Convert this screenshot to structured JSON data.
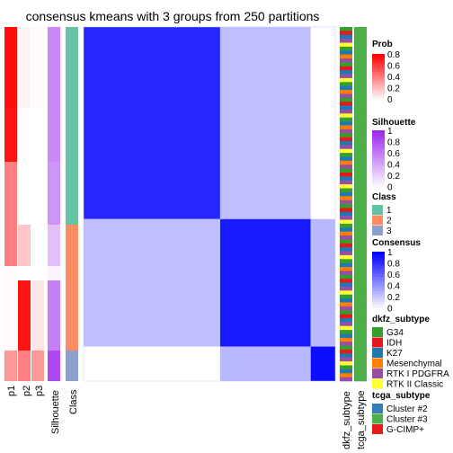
{
  "chart_data": {
    "type": "heatmap",
    "title": "consensus kmeans with 3 groups from 250 partitions",
    "columns": [
      "p1",
      "p2",
      "p3",
      "Silhouette",
      "Class"
    ],
    "row_groups": [
      {
        "p1": 0.95,
        "p2": 0.05,
        "p3": 0.02,
        "silhouette": 0.55,
        "class": 1
      },
      {
        "p1": 0.92,
        "p2": 0.0,
        "p3": 0.0,
        "silhouette": 0.55,
        "class": 1
      },
      {
        "p1": 0.5,
        "p2": 0.0,
        "p3": 0.0,
        "silhouette": 0.5,
        "class": 1
      },
      {
        "p1": 0.5,
        "p2": 0.22,
        "p3": 0.0,
        "silhouette": 0.3,
        "class": 2
      },
      {
        "p1": 0.02,
        "p2": 0.0,
        "p3": 0.0,
        "silhouette": 0.05,
        "class": 2
      },
      {
        "p1": 0.02,
        "p2": 0.92,
        "p3": 0.1,
        "silhouette": 0.6,
        "class": 2
      },
      {
        "p1": 0.4,
        "p2": 0.5,
        "p3": 0.4,
        "silhouette": 0.85,
        "class": 3
      }
    ],
    "consensus_blocks": [
      {
        "cluster": 1,
        "rows": 217,
        "within": 0.85,
        "between": {
          "2": 0.25,
          "3": 0.0
        }
      },
      {
        "cluster": 2,
        "rows": 144,
        "within": 0.9,
        "between": {
          "1": 0.25,
          "3": 0.28
        }
      },
      {
        "cluster": 3,
        "rows": 39,
        "within": 0.95,
        "between": {
          "1": 0.0,
          "2": 0.28
        }
      }
    ],
    "annotation_tracks": [
      "dkfz_subtype",
      "tcga_subtype"
    ]
  },
  "legend": {
    "prob": {
      "title": "Prob",
      "ticks": [
        "0.8",
        "0.6",
        "0.4",
        "0.2",
        "0"
      ],
      "low": "#ffffff",
      "high": "#ff0000"
    },
    "silhouette": {
      "title": "Silhouette",
      "ticks": [
        "1",
        "0.8",
        "0.6",
        "0.4",
        "0.2",
        "0"
      ],
      "low": "#ffffff",
      "high": "#9e28f0"
    },
    "class": {
      "title": "Class",
      "items": [
        {
          "label": "1",
          "color": "#66c2a5"
        },
        {
          "label": "2",
          "color": "#fc8d62"
        },
        {
          "label": "3",
          "color": "#8da0cb"
        }
      ]
    },
    "consensus": {
      "title": "Consensus",
      "ticks": [
        "1",
        "0.8",
        "0.6",
        "0.4",
        "0.2",
        "0"
      ],
      "low": "#ffffff",
      "high": "#0000ff"
    },
    "dkfz_subtype": {
      "title": "dkfz_subtype",
      "items": [
        {
          "label": "G34",
          "color": "#33a02c"
        },
        {
          "label": "IDH",
          "color": "#e31a1c"
        },
        {
          "label": "K27",
          "color": "#1f78b4"
        },
        {
          "label": "Mesenchymal",
          "color": "#ff7f00"
        },
        {
          "label": "RTK I PDGFRA",
          "color": "#984ea3"
        },
        {
          "label": "RTK II Classic",
          "color": "#ffff33"
        }
      ]
    },
    "tcga_subtype": {
      "title": "tcga_subtype",
      "items": [
        {
          "label": "Cluster #2",
          "color": "#377eb8"
        },
        {
          "label": "Cluster #3",
          "color": "#4daf4a"
        },
        {
          "label": "G-CIMP+",
          "color": "#e41a1c"
        }
      ]
    }
  }
}
